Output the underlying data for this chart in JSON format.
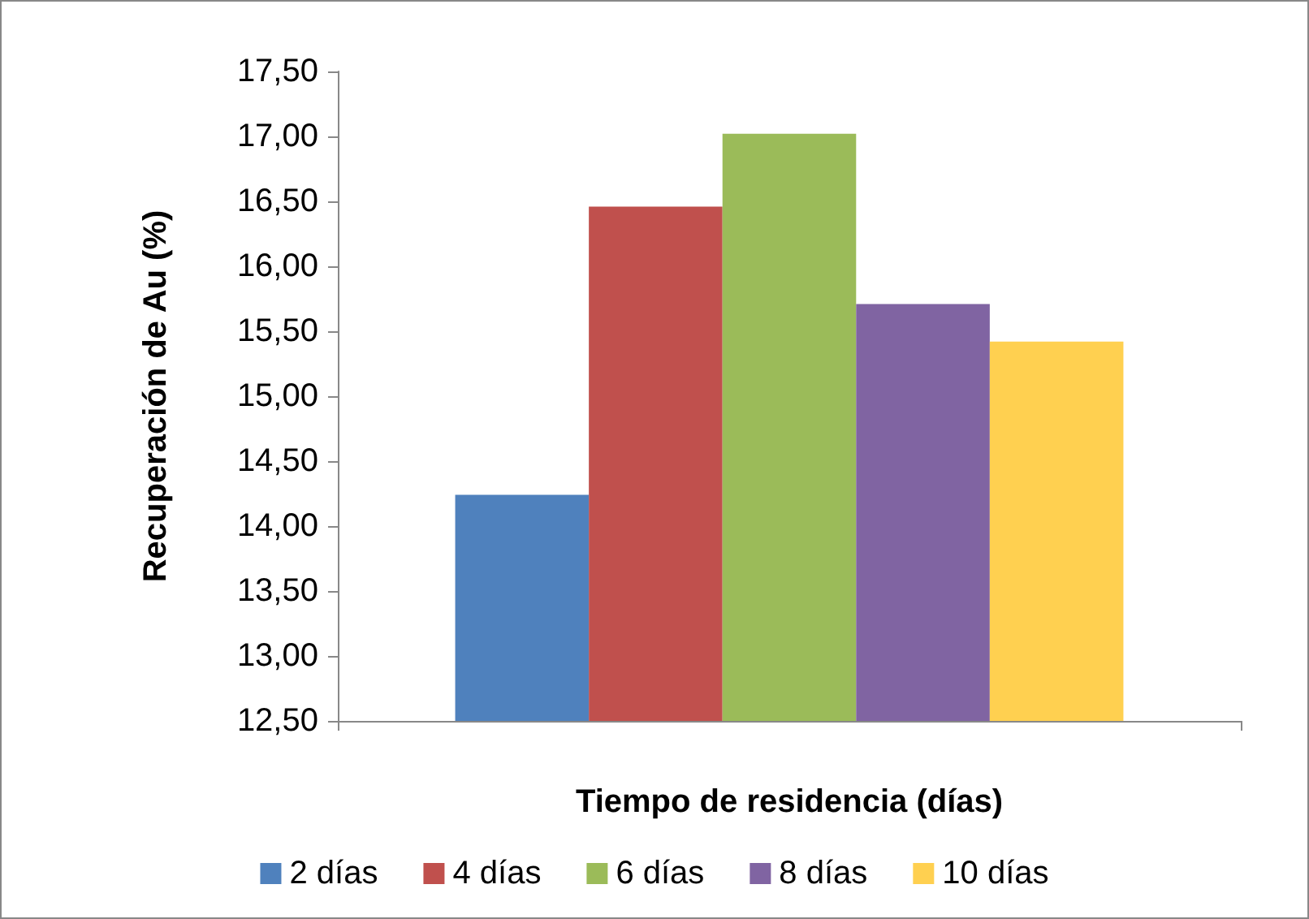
{
  "chart_data": {
    "type": "bar",
    "xlabel": "Tiempo de residencia (días)",
    "ylabel": "Recuperación de Au (%)",
    "categories": [
      null
    ],
    "series": [
      {
        "name": "2 días",
        "color": "#4f81bd",
        "values": [
          14.24
        ]
      },
      {
        "name": "4 días",
        "color": "#c0504d",
        "values": [
          16.46
        ]
      },
      {
        "name": "6 días",
        "color": "#9bbb59",
        "values": [
          17.02
        ]
      },
      {
        "name": "8 días",
        "color": "#8064a2",
        "values": [
          15.71
        ]
      },
      {
        "name": "10 días",
        "color": "#ffd050",
        "values": [
          15.42
        ]
      }
    ],
    "ylim": [
      12.5,
      17.5
    ],
    "yticks": [
      {
        "value": 12.5,
        "label": "12,50"
      },
      {
        "value": 13,
        "label": "13,00"
      },
      {
        "value": 13.5,
        "label": "13,50"
      },
      {
        "value": 14,
        "label": "14,00"
      },
      {
        "value": 14.5,
        "label": "14,50"
      },
      {
        "value": 15,
        "label": "15,00"
      },
      {
        "value": 15.5,
        "label": "15,50"
      },
      {
        "value": 16,
        "label": "16,00"
      },
      {
        "value": 16.5,
        "label": "16,50"
      },
      {
        "value": 17,
        "label": "17,00"
      },
      {
        "value": 17.5,
        "label": "17,50"
      }
    ],
    "grid": false,
    "legend": "bottom"
  }
}
